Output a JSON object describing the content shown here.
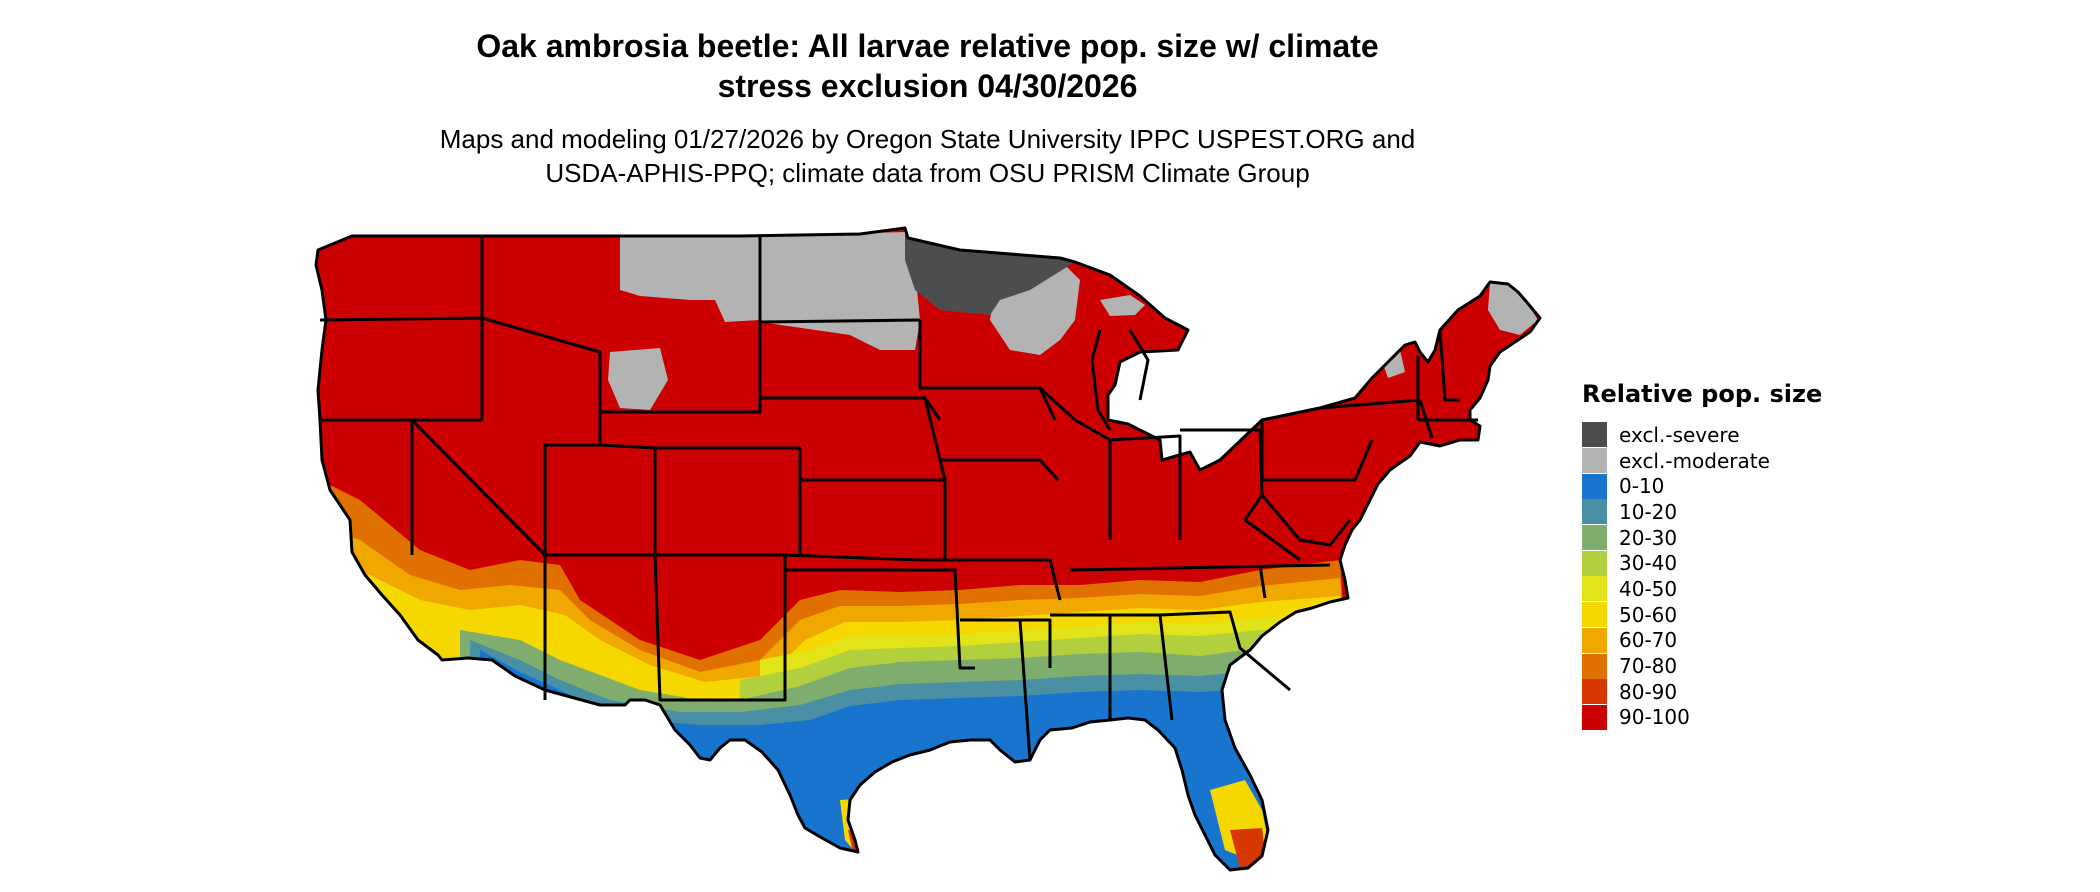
{
  "title": {
    "line1": "Oak ambrosia beetle: All larvae relative pop. size w/ climate",
    "line2": "stress exclusion 04/30/2026"
  },
  "subtitle": {
    "line1": "Maps and modeling 01/27/2026 by Oregon State University IPPC USPEST.ORG and",
    "line2": "USDA-APHIS-PPQ; climate data from OSU PRISM Climate Group"
  },
  "legend": {
    "title": "Relative pop. size",
    "items": [
      {
        "label": "excl.-severe",
        "color": "#4d4d4d"
      },
      {
        "label": "excl.-moderate",
        "color": "#b3b3b3"
      },
      {
        "label": "0-10",
        "color": "#1874cd"
      },
      {
        "label": "10-20",
        "color": "#4a90a4"
      },
      {
        "label": "20-30",
        "color": "#7fad6e"
      },
      {
        "label": "30-40",
        "color": "#b2cf3e"
      },
      {
        "label": "40-50",
        "color": "#e3e31a"
      },
      {
        "label": "50-60",
        "color": "#f5d800"
      },
      {
        "label": "60-70",
        "color": "#f0a800"
      },
      {
        "label": "70-80",
        "color": "#e07000"
      },
      {
        "label": "80-90",
        "color": "#d83800"
      },
      {
        "label": "90-100",
        "color": "#cc0000"
      }
    ]
  }
}
